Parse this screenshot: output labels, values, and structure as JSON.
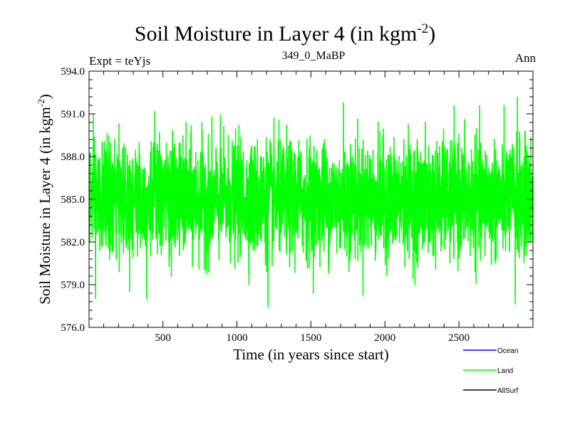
{
  "chart_data": {
    "type": "line",
    "title": "Soil Moisture in Layer 4 (in kgm",
    "title_sup": "-2",
    "title_close": ")",
    "subtitle_left": "Expt = teYjs",
    "subtitle_center": "349_0_MaBP",
    "subtitle_right": "Ann",
    "xlabel": "Time (in years since start)",
    "ylabel": "Soil Moisture in Layer 4 (in kgm",
    "ylabel_sup": "-2",
    "ylabel_close": ")",
    "xlim": [
      1,
      3000
    ],
    "ylim": [
      576.0,
      594.0
    ],
    "xticks": [
      500,
      1000,
      1500,
      2000,
      2500
    ],
    "xtick_labels": [
      "500",
      "1000",
      "1500",
      "2000",
      "2500"
    ],
    "yticks": [
      576.0,
      579.0,
      582.0,
      585.0,
      588.0,
      591.0,
      594.0
    ],
    "ytick_labels": [
      "576.0",
      "579.0",
      "582.0",
      "585.0",
      "588.0",
      "591.0",
      "594.0"
    ],
    "series": [
      {
        "name": "Ocean",
        "color": "#0000ff",
        "values": []
      },
      {
        "name": "Land",
        "color": "#00ff00",
        "n_points": 3000,
        "mean": 585.0,
        "std": 2.0,
        "min": 577.3,
        "max": 592.2,
        "notable_points": [
          [
            45,
            578.0
          ],
          [
            390,
            578.0
          ],
          [
            445,
            591.2
          ],
          [
            1210,
            577.4
          ],
          [
            1720,
            591.8
          ],
          [
            2880,
            577.6
          ],
          [
            2895,
            592.2
          ]
        ]
      },
      {
        "name": "AllSurf",
        "color": "#000000",
        "values": []
      }
    ],
    "legend": [
      {
        "label": "Ocean",
        "color": "#0000ff"
      },
      {
        "label": "Land",
        "color": "#00ff00"
      },
      {
        "label": "AllSurf",
        "color": "#000000"
      }
    ]
  }
}
